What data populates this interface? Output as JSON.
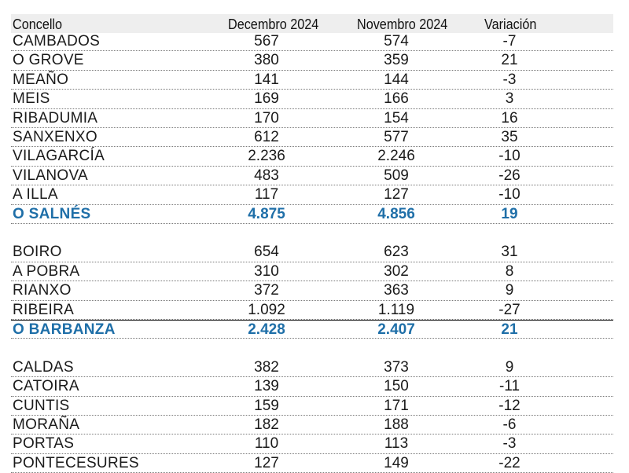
{
  "header": {
    "concello": "Concello",
    "dec": "Decembro 2024",
    "nov": "Novembro 2024",
    "var": "Variación"
  },
  "groups": [
    {
      "rows": [
        {
          "name": "CAMBADOS",
          "dec": "567",
          "nov": "574",
          "var": "-7"
        },
        {
          "name": "O GROVE",
          "dec": "380",
          "nov": "359",
          "var": "21"
        },
        {
          "name": "MEAÑO",
          "dec": "141",
          "nov": "144",
          "var": "-3"
        },
        {
          "name": "MEIS",
          "dec": "169",
          "nov": "166",
          "var": "3"
        },
        {
          "name": "RIBADUMIA",
          "dec": "170",
          "nov": "154",
          "var": "16"
        },
        {
          "name": "SANXENXO",
          "dec": "612",
          "nov": "577",
          "var": "35"
        },
        {
          "name": "VILAGARCÍA",
          "dec": "2.236",
          "nov": "2.246",
          "var": "-10"
        },
        {
          "name": "VILANOVA",
          "dec": "483",
          "nov": "509",
          "var": "-26"
        },
        {
          "name": "A ILLA",
          "dec": "117",
          "nov": "127",
          "var": "-10"
        }
      ],
      "total": {
        "name": "O SALNÉS",
        "dec": "4.875",
        "nov": "4.856",
        "var": "19"
      }
    },
    {
      "rows": [
        {
          "name": "BOIRO",
          "dec": "654",
          "nov": "623",
          "var": "31"
        },
        {
          "name": "A POBRA",
          "dec": "310",
          "nov": "302",
          "var": "8"
        },
        {
          "name": "RIANXO",
          "dec": "372",
          "nov": "363",
          "var": "9"
        },
        {
          "name": "RIBEIRA",
          "dec": "1.092",
          "nov": "1.119",
          "var": "-27"
        }
      ],
      "total": {
        "name": "O BARBANZA",
        "dec": "2.428",
        "nov": "2.407",
        "var": "21"
      }
    },
    {
      "rows": [
        {
          "name": "CALDAS",
          "dec": "382",
          "nov": "373",
          "var": "9"
        },
        {
          "name": "CATOIRA",
          "dec": "139",
          "nov": "150",
          "var": "-11"
        },
        {
          "name": "CUNTIS",
          "dec": "159",
          "nov": "171",
          "var": "-12"
        },
        {
          "name": "MORAÑA",
          "dec": "182",
          "nov": "188",
          "var": "-6"
        },
        {
          "name": "PORTAS",
          "dec": "110",
          "nov": "113",
          "var": "-3"
        },
        {
          "name": "PONTECESURES",
          "dec": "127",
          "nov": "149",
          "var": "-22"
        }
      ]
    }
  ]
}
